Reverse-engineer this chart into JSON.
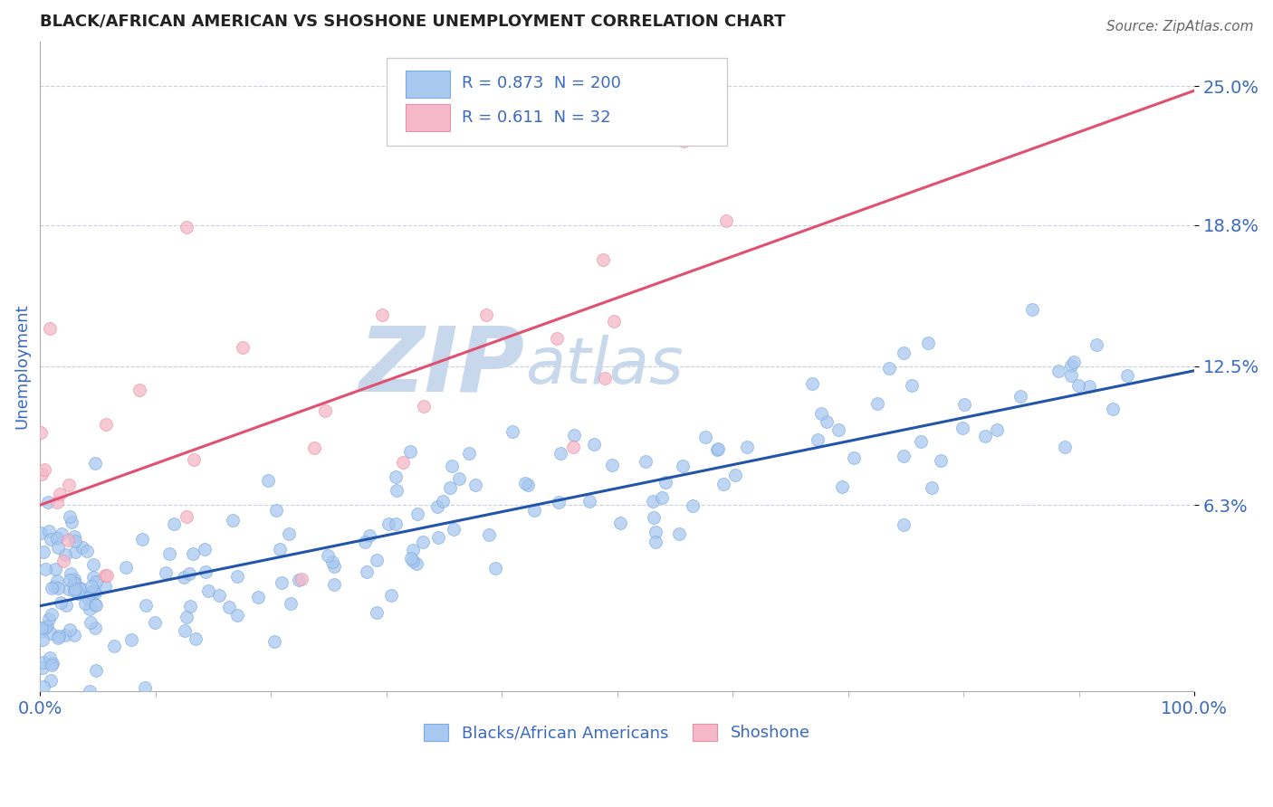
{
  "title": "BLACK/AFRICAN AMERICAN VS SHOSHONE UNEMPLOYMENT CORRELATION CHART",
  "source_text": "Source: ZipAtlas.com",
  "ylabel": "Unemployment",
  "xlim": [
    0,
    100
  ],
  "ylim": [
    -2,
    27
  ],
  "yticks": [
    6.3,
    12.5,
    18.8,
    25.0
  ],
  "xtick_labels": [
    "0.0%",
    "100.0%"
  ],
  "ytick_labels": [
    "6.3%",
    "12.5%",
    "18.8%",
    "25.0%"
  ],
  "blue_color": "#a8c8f0",
  "blue_edge_color": "#7aaae0",
  "pink_color": "#f5b8c8",
  "pink_edge_color": "#e890a8",
  "blue_line_color": "#2255aa",
  "pink_line_color": "#e05070",
  "legend_blue_R": "0.873",
  "legend_blue_N": "200",
  "legend_pink_R": "0.611",
  "legend_pink_N": " 32",
  "watermark_zip": "ZIP",
  "watermark_atlas": "atlas",
  "watermark_color": "#c8d8ec",
  "title_color": "#222222",
  "tick_label_color": "#3a6abf",
  "source_color": "#666666",
  "blue_n": 200,
  "pink_n": 32,
  "blue_slope": 0.105,
  "blue_intercept": 1.8,
  "blue_noise_std": 1.8,
  "pink_slope": 0.185,
  "pink_intercept": 6.3,
  "pink_noise_std": 3.5,
  "blue_seed": 42,
  "pink_seed": 99
}
